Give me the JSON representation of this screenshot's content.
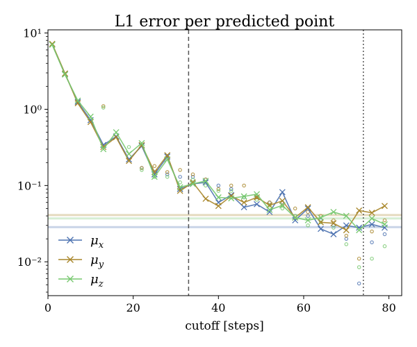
{
  "chart_data": {
    "type": "line",
    "title": "L1 error per predicted point",
    "xlabel": "cutoff [steps]",
    "ylabel": "",
    "yscale": "log",
    "xlim": [
      0,
      83
    ],
    "ylim": [
      0.0036,
      11
    ],
    "x_ticks": [
      0,
      20,
      40,
      60,
      80
    ],
    "x_tick_labels": [
      "0",
      "20",
      "40",
      "60",
      "80"
    ],
    "y_ticks": [
      0.01,
      0.1,
      1,
      10
    ],
    "y_tick_labels": [
      "10⁻²",
      "10⁻¹",
      "10⁰",
      "10¹"
    ],
    "legend_position": "lower-left",
    "x": [
      1,
      4,
      7,
      10,
      13,
      16,
      19,
      22,
      25,
      28,
      31,
      34,
      37,
      40,
      43,
      46,
      49,
      52,
      55,
      58,
      61,
      64,
      67,
      70,
      73,
      76,
      79
    ],
    "series": [
      {
        "name": "μ_x",
        "label_base": "μ",
        "label_sub": "x",
        "color": "#4c72b0",
        "values": [
          7.1,
          2.9,
          1.25,
          0.72,
          0.34,
          0.44,
          0.22,
          0.33,
          0.14,
          0.24,
          0.09,
          0.105,
          0.11,
          0.06,
          0.075,
          0.052,
          0.057,
          0.045,
          0.082,
          0.035,
          0.05,
          0.027,
          0.023,
          0.03,
          0.028,
          0.031,
          0.028
        ],
        "mean": 0.0285,
        "scatter_x": [
          22,
          25,
          28,
          31,
          34,
          37,
          40,
          43,
          46,
          49,
          52,
          55,
          58,
          61,
          64,
          67,
          70,
          73,
          76,
          79
        ],
        "scatter_values": [
          0.17,
          0.15,
          0.14,
          0.13,
          0.13,
          0.12,
          0.1,
          0.09,
          0.07,
          0.07,
          0.06,
          0.06,
          0.04,
          0.04,
          0.035,
          0.03,
          0.02,
          0.0052,
          0.018,
          0.023
        ]
      },
      {
        "name": "μ_y",
        "label_base": "μ",
        "label_sub": "y",
        "color": "#a8862a",
        "values": [
          7.2,
          2.95,
          1.2,
          0.68,
          0.32,
          0.43,
          0.21,
          0.34,
          0.15,
          0.25,
          0.085,
          0.11,
          0.067,
          0.054,
          0.073,
          0.06,
          0.07,
          0.055,
          0.063,
          0.038,
          0.052,
          0.033,
          0.032,
          0.026,
          0.047,
          0.044,
          0.054
        ],
        "mean": 0.041,
        "scatter_x": [
          13,
          22,
          25,
          28,
          31,
          34,
          37,
          40,
          43,
          46,
          49,
          52,
          55,
          58,
          61,
          64,
          67,
          70,
          73,
          76,
          79
        ],
        "scatter_values": [
          1.1,
          0.17,
          0.18,
          0.15,
          0.16,
          0.14,
          0.12,
          0.09,
          0.1,
          0.1,
          0.07,
          0.06,
          0.055,
          0.05,
          0.045,
          0.04,
          0.035,
          0.022,
          0.011,
          0.025,
          0.035
        ]
      },
      {
        "name": "μ_z",
        "label_base": "μ",
        "label_sub": "z",
        "color": "#77c86f",
        "values": [
          7.0,
          2.85,
          1.3,
          0.8,
          0.3,
          0.5,
          0.26,
          0.36,
          0.13,
          0.22,
          0.095,
          0.105,
          0.115,
          0.07,
          0.068,
          0.072,
          0.077,
          0.048,
          0.055,
          0.038,
          0.035,
          0.038,
          0.045,
          0.04,
          0.026,
          0.037,
          0.031
        ],
        "mean": 0.037,
        "scatter_x": [
          13,
          19,
          22,
          25,
          28,
          31,
          34,
          37,
          40,
          43,
          46,
          49,
          52,
          55,
          58,
          61,
          64,
          67,
          70,
          73,
          76,
          79
        ],
        "scatter_values": [
          1.05,
          0.32,
          0.16,
          0.13,
          0.13,
          0.11,
          0.12,
          0.1,
          0.085,
          0.085,
          0.07,
          0.065,
          0.055,
          0.05,
          0.04,
          0.03,
          0.033,
          0.028,
          0.017,
          0.0085,
          0.011,
          0.016
        ]
      }
    ],
    "vlines": [
      {
        "x": 33,
        "style": "dashed"
      },
      {
        "x": 74,
        "style": "dotted"
      }
    ]
  }
}
